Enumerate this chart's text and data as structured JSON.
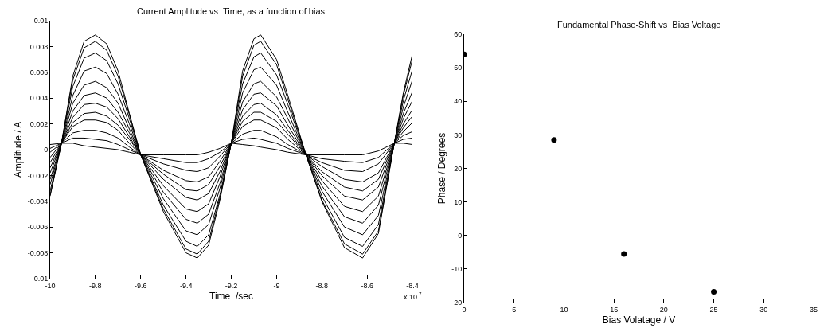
{
  "chart_data": [
    {
      "type": "line",
      "title": "Current Amplitude vs  Time, as a function of bias",
      "xlabel": "Time  /sec",
      "ylabel": "Amplitude / A",
      "annotations": [
        "x 10$^{-7}$"
      ],
      "xlim": [
        -10,
        -8.4
      ],
      "xticks": [
        -10,
        -9.8,
        -9.6,
        -9.4,
        -9.2,
        -9,
        -8.8,
        -8.6,
        -8.4
      ],
      "ylim": [
        -0.01,
        0.01
      ],
      "yticks": [
        -0.01,
        -0.008,
        -0.006,
        -0.004,
        -0.002,
        0,
        0.002,
        0.004,
        0.006,
        0.008,
        0.01
      ],
      "line_style": "solid",
      "x": [
        -10,
        -9.95,
        -9.9,
        -9.85,
        -9.8,
        -9.75,
        -9.7,
        -9.65,
        -9.6,
        -9.5,
        -9.4,
        -9.35,
        -9.3,
        -9.25,
        -9.2,
        -9.15,
        -9.1,
        -9.07,
        -9.0,
        -8.95,
        -8.87,
        -8.8,
        -8.7,
        -8.62,
        -8.55,
        -8.48,
        -8.44,
        -8.4
      ],
      "series": [
        {
          "color": "#000000",
          "values": [
            -0.0036,
            0.0005,
            0.0057,
            0.0084,
            0.0089,
            0.0082,
            0.0061,
            0.0028,
            -0.0004,
            -0.0048,
            -0.008,
            -0.0084,
            -0.0074,
            -0.0039,
            0.0005,
            0.0061,
            0.0086,
            0.0089,
            0.007,
            0.0042,
            -0.0004,
            -0.004,
            -0.0076,
            -0.0084,
            -0.0065,
            0.0005,
            0.0044,
            0.0074
          ]
        },
        {
          "color": "#000000",
          "values": [
            -0.0035,
            0.0005,
            0.0054,
            0.0079,
            0.0084,
            0.0077,
            0.0057,
            0.0027,
            -0.0004,
            -0.0046,
            -0.0077,
            -0.0081,
            -0.0071,
            -0.0037,
            0.0005,
            0.0057,
            0.0081,
            0.0084,
            0.0066,
            0.0039,
            -0.0004,
            -0.0039,
            -0.0073,
            -0.0081,
            -0.0063,
            0.0005,
            0.0042,
            0.007
          ]
        },
        {
          "color": "#000000",
          "values": [
            -0.0032,
            0.0005,
            0.0049,
            0.0071,
            0.0075,
            0.0069,
            0.0051,
            0.0024,
            -0.0004,
            -0.0043,
            -0.0071,
            -0.0075,
            -0.0066,
            -0.0035,
            0.0005,
            0.0051,
            0.0072,
            0.0075,
            0.0058,
            0.0035,
            -0.0004,
            -0.0036,
            -0.0068,
            -0.0075,
            -0.0058,
            0.0005,
            0.0038,
            0.0062
          ]
        },
        {
          "color": "#000000",
          "values": [
            -0.0027,
            0.0005,
            0.0042,
            0.0061,
            0.0064,
            0.0059,
            0.0043,
            0.002,
            -0.0004,
            -0.0038,
            -0.0063,
            -0.0066,
            -0.0058,
            -0.003,
            0.0005,
            0.0044,
            0.0062,
            0.0064,
            0.005,
            0.0029,
            -0.0004,
            -0.0032,
            -0.006,
            -0.0066,
            -0.0051,
            0.0005,
            0.0033,
            0.0054
          ]
        },
        {
          "color": "#000000",
          "values": [
            -0.0023,
            0.0005,
            0.0036,
            0.005,
            0.0053,
            0.0048,
            0.0036,
            0.0016,
            -0.0004,
            -0.0033,
            -0.0054,
            -0.0057,
            -0.005,
            -0.0026,
            0.0005,
            0.0037,
            0.0051,
            0.0053,
            0.0041,
            0.0024,
            -0.0004,
            -0.0028,
            -0.0052,
            -0.0057,
            -0.0043,
            0.0005,
            0.0028,
            0.0045
          ]
        },
        {
          "color": "#000000",
          "values": [
            -0.0018,
            0.0005,
            0.003,
            0.0042,
            0.0044,
            0.004,
            0.0029,
            0.0013,
            -0.0004,
            -0.0028,
            -0.0046,
            -0.0048,
            -0.0042,
            -0.0021,
            0.0005,
            0.0031,
            0.0043,
            0.0044,
            0.0034,
            0.0019,
            -0.0004,
            -0.0024,
            -0.0044,
            -0.0048,
            -0.0036,
            0.0005,
            0.0024,
            0.0038
          ]
        },
        {
          "color": "#000000",
          "values": [
            -0.0014,
            0.0005,
            0.0025,
            0.0035,
            0.0036,
            0.0033,
            0.0024,
            0.001,
            -0.0004,
            -0.0023,
            -0.0037,
            -0.0039,
            -0.0034,
            -0.0017,
            0.0005,
            0.0026,
            0.0035,
            0.0036,
            0.0027,
            0.0015,
            -0.0004,
            -0.002,
            -0.0036,
            -0.0039,
            -0.0029,
            0.0005,
            0.002,
            0.0031
          ]
        },
        {
          "color": "#000000",
          "values": [
            -0.001,
            0.0005,
            0.0021,
            0.0028,
            0.0029,
            0.0026,
            0.0019,
            0.0008,
            -0.0004,
            -0.0019,
            -0.0031,
            -0.0032,
            -0.0027,
            -0.0013,
            0.0005,
            0.0022,
            0.0029,
            0.0029,
            0.0022,
            0.0012,
            -0.0004,
            -0.0017,
            -0.0029,
            -0.0032,
            -0.0023,
            0.0005,
            0.0017,
            0.0026
          ]
        },
        {
          "color": "#000000",
          "values": [
            -0.0006,
            0.0005,
            0.0018,
            0.0023,
            0.0023,
            0.0021,
            0.0015,
            0.0005,
            -0.0004,
            -0.0016,
            -0.0024,
            -0.0025,
            -0.0021,
            -0.0009,
            0.0005,
            0.0018,
            0.0023,
            0.0023,
            0.0017,
            0.0008,
            -0.0004,
            -0.0013,
            -0.0023,
            -0.0025,
            -0.0018,
            0.0005,
            0.0014,
            0.0021
          ]
        },
        {
          "color": "#000000",
          "values": [
            -0.0002,
            0.0005,
            0.0013,
            0.0015,
            0.0015,
            0.0013,
            0.0009,
            0.0002,
            -0.0004,
            -0.0011,
            -0.0016,
            -0.0017,
            -0.0014,
            -0.0005,
            0.0005,
            0.0012,
            0.0015,
            0.0015,
            0.001,
            0.0004,
            -0.0004,
            -0.001,
            -0.0016,
            -0.0017,
            -0.0011,
            0.0005,
            0.0011,
            0.0014
          ]
        },
        {
          "color": "#000000",
          "values": [
            0.0001,
            0.0005,
            0.0009,
            0.0009,
            0.0008,
            0.0007,
            0.0004,
            0.0,
            -0.0004,
            -0.0007,
            -0.001,
            -0.001,
            -0.0007,
            -0.0002,
            0.0005,
            0.0008,
            0.0009,
            0.0008,
            0.0005,
            0.0001,
            -0.0004,
            -0.0007,
            -0.0009,
            -0.001,
            -0.0006,
            0.0005,
            0.0008,
            0.0009
          ]
        },
        {
          "color": "#000000",
          "values": [
            0.0004,
            0.0005,
            0.0005,
            0.0003,
            0.0002,
            0.0001,
            0.0,
            -0.0002,
            -0.0004,
            -0.0004,
            -0.0004,
            -0.0004,
            -0.0002,
            0.0001,
            0.0005,
            0.0004,
            0.0003,
            0.0002,
            0.0,
            -0.0002,
            -0.0004,
            -0.0004,
            -0.0004,
            -0.0004,
            -0.0001,
            0.0005,
            0.0005,
            0.0004
          ]
        }
      ]
    },
    {
      "type": "scatter",
      "title": "Fundamental Phase-Shift vs  Bias Voltage",
      "xlabel": "Bias Volatage / V",
      "ylabel": "Phase / Degrees",
      "xlim": [
        0,
        35
      ],
      "xticks": [
        0,
        5,
        10,
        15,
        20,
        25,
        30,
        35
      ],
      "ylim": [
        -20,
        60
      ],
      "yticks": [
        -20,
        -10,
        0,
        10,
        20,
        30,
        40,
        50,
        60
      ],
      "marker": "circle",
      "x": [
        0,
        9,
        16,
        25
      ],
      "series": [
        {
          "color": "#000000",
          "values": [
            54,
            28.5,
            -5.5,
            -16.8
          ]
        }
      ]
    }
  ]
}
